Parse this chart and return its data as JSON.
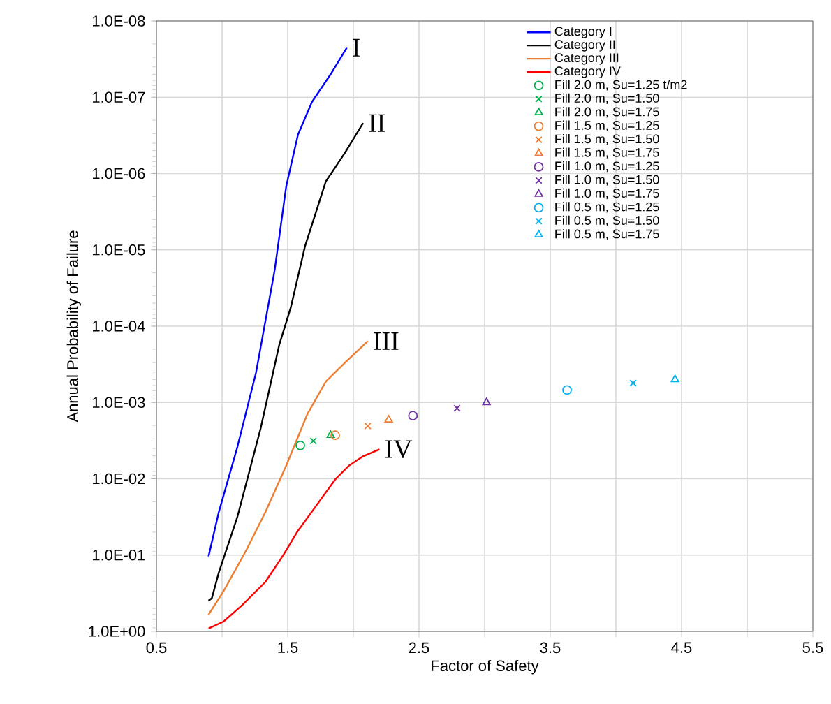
{
  "chart_data": {
    "type": "line",
    "xlabel": "Factor of Safety",
    "ylabel": "Annual Probability of Failure",
    "xlim": [
      0.5,
      5.5
    ],
    "ylim": [
      1,
      1e-08
    ],
    "log": "y",
    "grid": true,
    "legend": "top right",
    "line_style": "solid",
    "xticks": [
      0.5,
      {
        "value": 1.0,
        "label": null
      },
      1.5,
      {
        "value": 2.0,
        "label": null
      },
      2.5,
      {
        "value": 3.0,
        "label": null
      },
      3.5,
      {
        "value": 4.0,
        "label": null
      },
      4.5,
      {
        "value": 5.0,
        "label": null
      },
      5.5
    ],
    "yticks": [
      {
        "value": 1e-08,
        "label": "1.0E-08"
      },
      {
        "value": 1e-07,
        "label": "1.0E-07"
      },
      {
        "value": 1e-06,
        "label": "1.0E-06"
      },
      {
        "value": 1e-05,
        "label": "1.0E-05"
      },
      {
        "value": 0.0001,
        "label": "1.0E-04"
      },
      {
        "value": 0.001,
        "label": "1.0E-03"
      },
      {
        "value": 0.01,
        "label": "1.0E-02"
      },
      {
        "value": 0.1,
        "label": "1.0E-01"
      },
      {
        "value": 1,
        "label": "1.0E+00"
      }
    ],
    "annotations": [
      {
        "text": "I",
        "x": 1.95,
        "y": 2.24e-08
      },
      {
        "text": "II",
        "x": 2.074,
        "y": 2.18e-07
      },
      {
        "text": "III",
        "x": 2.11,
        "y": 0.000157
      },
      {
        "text": "IV",
        "x": 2.199,
        "y": 0.00411
      }
    ],
    "series": [
      {
        "name": "Category I",
        "color": "#0000ff",
        "x": [
          0.897,
          0.975,
          1.117,
          1.259,
          1.401,
          1.489,
          1.578,
          1.684,
          1.827,
          1.95
        ],
        "values": [
          0.104,
          0.0274,
          0.00382,
          0.000404,
          1.83e-05,
          1.46e-06,
          3.11e-07,
          1.16e-07,
          4.99e-08,
          2.24e-08
        ]
      },
      {
        "name": "Category II",
        "color": "#000000",
        "x": [
          0.897,
          0.922,
          0.975,
          1.117,
          1.294,
          1.436,
          1.524,
          1.631,
          1.79,
          1.933,
          2.074
        ],
        "values": [
          0.395,
          0.368,
          0.17,
          0.0315,
          0.00218,
          0.000174,
          5.64e-05,
          9.08e-06,
          1.27e-06,
          5.45e-07,
          2.18e-07
        ]
      },
      {
        "name": "Category III",
        "color": "#ed7d31",
        "x": [
          0.897,
          1.011,
          1.188,
          1.33,
          1.489,
          1.649,
          1.79,
          1.933,
          2.11
        ],
        "values": [
          0.603,
          0.298,
          0.0841,
          0.0274,
          0.0067,
          0.00143,
          0.000533,
          0.000305,
          0.000157
        ]
      },
      {
        "name": "Category IV",
        "color": "#ff0000",
        "x": [
          0.897,
          1.011,
          1.152,
          1.33,
          1.471,
          1.578,
          1.72,
          1.862,
          1.968,
          2.074,
          2.199
        ],
        "values": [
          0.918,
          0.745,
          0.455,
          0.225,
          0.0971,
          0.048,
          0.0222,
          0.0102,
          0.0067,
          0.00507,
          0.00411
        ]
      },
      {
        "name": "Fill 2.0 m, Su=1.25 t/m2",
        "type": "scatter",
        "marker": "circle",
        "color": "#00b050",
        "x": [
          1.596
        ],
        "values": [
          0.00366
        ]
      },
      {
        "name": "Fill 2.0 m, Su=1.50",
        "type": "scatter",
        "marker": "cross",
        "color": "#00b050",
        "x": [
          1.695
        ],
        "values": [
          0.00319
        ]
      },
      {
        "name": "Fill 2.0 m, Su=1.75",
        "type": "scatter",
        "marker": "triangle",
        "color": "#00b050",
        "x": [
          1.827
        ],
        "values": [
          0.00269
        ]
      },
      {
        "name": "Fill 1.5 m, Su=1.25",
        "type": "scatter",
        "marker": "circle",
        "color": "#ed7d31",
        "x": [
          1.862
        ],
        "values": [
          0.00269
        ]
      },
      {
        "name": "Fill 1.5 m, Su=1.50",
        "type": "scatter",
        "marker": "cross",
        "color": "#ed7d31",
        "x": [
          2.11
        ],
        "values": [
          0.00203
        ]
      },
      {
        "name": "Fill 1.5 m, Su=1.75",
        "type": "scatter",
        "marker": "triangle",
        "color": "#ed7d31",
        "x": [
          2.269
        ],
        "values": [
          0.00169
        ]
      },
      {
        "name": "Fill 1.0 m, Su=1.25",
        "type": "scatter",
        "marker": "circle",
        "color": "#7030a0",
        "x": [
          2.454
        ],
        "values": [
          0.00149
        ]
      },
      {
        "name": "Fill 1.0 m, Su=1.50",
        "type": "scatter",
        "marker": "cross",
        "color": "#7030a0",
        "x": [
          2.79
        ],
        "values": [
          0.00119
        ]
      },
      {
        "name": "Fill 1.0 m, Su=1.75",
        "type": "scatter",
        "marker": "triangle",
        "color": "#7030a0",
        "x": [
          3.014
        ],
        "values": [
          0.001
        ]
      },
      {
        "name": "Fill 0.5 m, Su=1.25",
        "type": "scatter",
        "marker": "circle",
        "color": "#00b0f0",
        "x": [
          3.628
        ],
        "values": [
          0.000687
        ]
      },
      {
        "name": "Fill 0.5 m, Su=1.50",
        "type": "scatter",
        "marker": "cross",
        "color": "#00b0f0",
        "x": [
          4.131
        ],
        "values": [
          0.000557
        ]
      },
      {
        "name": "Fill 0.5 m, Su=1.75",
        "type": "scatter",
        "marker": "triangle",
        "color": "#00b0f0",
        "x": [
          4.45
        ],
        "values": [
          0.000499
        ]
      }
    ]
  }
}
